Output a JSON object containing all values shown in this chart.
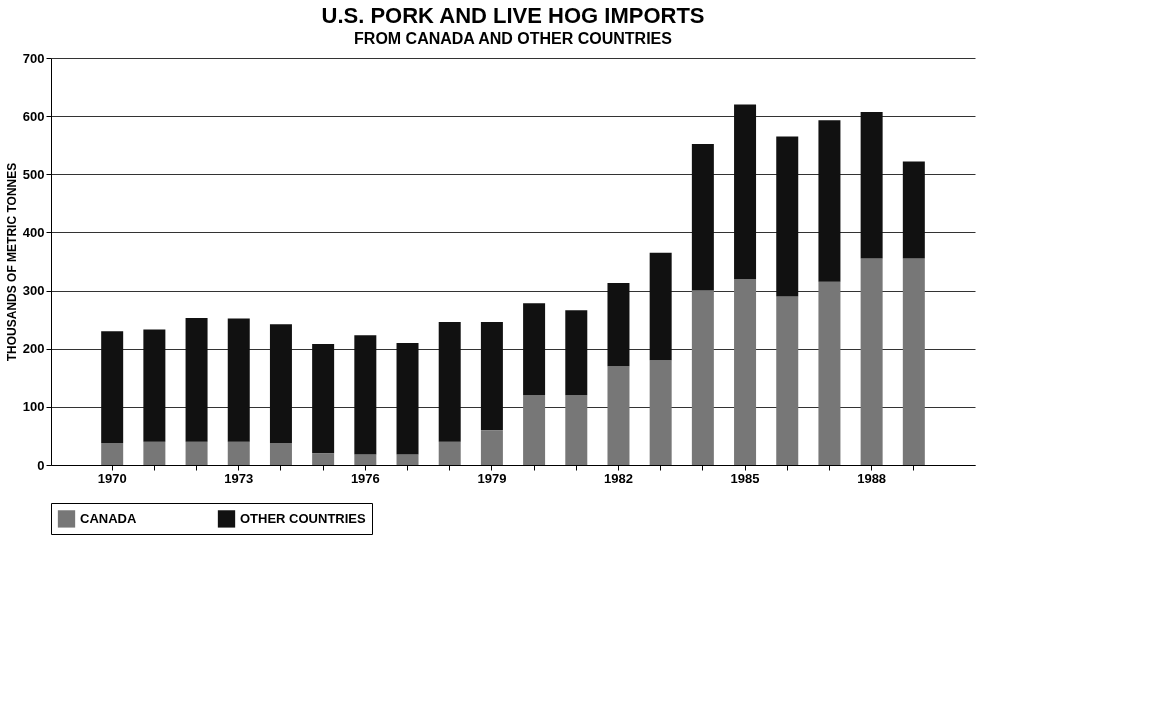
{
  "chart_data": {
    "type": "bar",
    "title": "U.S. PORK AND LIVE HOG IMPORTS",
    "subtitle": "FROM CANADA AND OTHER COUNTRIES",
    "ylabel": "THOUSANDS OF METRIC TONNES",
    "categories": [
      "1970",
      null,
      null,
      "1973",
      null,
      null,
      "1976",
      null,
      null,
      "1979",
      null,
      null,
      "1982",
      null,
      null,
      "1985",
      null,
      null,
      "1988",
      null
    ],
    "stacked": true,
    "series": [
      {
        "name": "CANADA",
        "color": "#777777",
        "values": [
          38,
          40,
          40,
          40,
          38,
          20,
          18,
          18,
          40,
          60,
          120,
          120,
          170,
          180,
          300,
          320,
          290,
          315,
          355,
          355
        ]
      },
      {
        "name": "OTHER COUNTRIES",
        "color": "#111111",
        "values": [
          192,
          193,
          213,
          212,
          204,
          188,
          205,
          192,
          206,
          186,
          158,
          146,
          143,
          185,
          252,
          300,
          275,
          278,
          252,
          167
        ]
      }
    ],
    "ylim": [
      0,
      700
    ],
    "yticks": [
      0,
      100,
      200,
      300,
      400,
      500,
      600,
      700
    ],
    "grid": "y",
    "legend": "bottom"
  }
}
